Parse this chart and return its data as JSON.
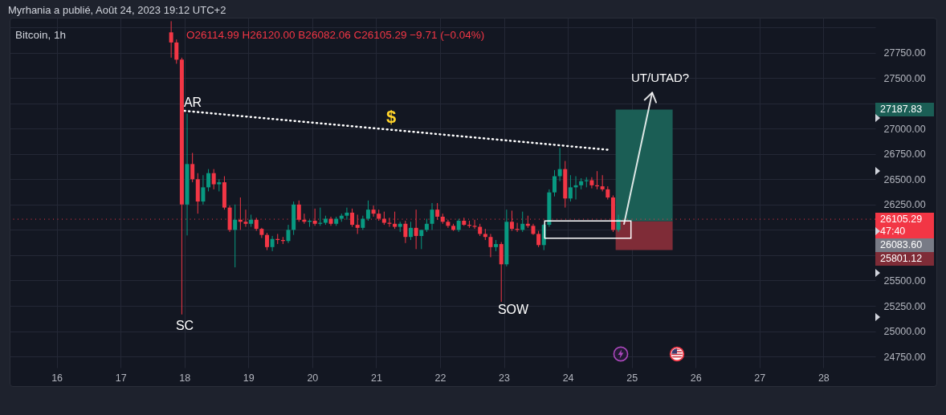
{
  "chart_data": {
    "type": "candlestick",
    "title": "Bitcoin, 1h",
    "x": [
      "2023-08-17T19:00",
      "2023-08-17T21:00",
      "2023-08-17T23:00",
      "2023-08-18T01:00",
      "2023-08-18T03:00",
      "2023-08-18T05:00",
      "2023-08-18T07:00",
      "2023-08-18T09:00",
      "2023-08-18T11:00",
      "2023-08-18T13:00",
      "2023-08-18T15:00",
      "2023-08-18T17:00",
      "2023-08-18T19:00",
      "2023-08-18T21:00",
      "2023-08-18T23:00",
      "2023-08-19T01:00",
      "2023-08-19T03:00",
      "2023-08-19T05:00",
      "2023-08-19T07:00",
      "2023-08-19T09:00",
      "2023-08-19T11:00",
      "2023-08-19T13:00",
      "2023-08-19T15:00",
      "2023-08-19T17:00",
      "2023-08-19T19:00",
      "2023-08-19T21:00",
      "2023-08-19T23:00",
      "2023-08-20T01:00",
      "2023-08-20T03:00",
      "2023-08-20T05:00",
      "2023-08-20T07:00",
      "2023-08-20T09:00",
      "2023-08-20T11:00",
      "2023-08-20T13:00",
      "2023-08-20T15:00",
      "2023-08-20T17:00",
      "2023-08-20T19:00",
      "2023-08-20T21:00",
      "2023-08-20T23:00",
      "2023-08-21T01:00",
      "2023-08-21T03:00",
      "2023-08-21T05:00",
      "2023-08-21T07:00",
      "2023-08-21T09:00",
      "2023-08-21T11:00",
      "2023-08-21T13:00",
      "2023-08-21T15:00",
      "2023-08-21T17:00",
      "2023-08-21T19:00",
      "2023-08-21T21:00",
      "2023-08-21T23:00",
      "2023-08-22T01:00",
      "2023-08-22T03:00",
      "2023-08-22T05:00",
      "2023-08-22T07:00",
      "2023-08-22T09:00",
      "2023-08-22T11:00",
      "2023-08-22T13:00",
      "2023-08-22T15:00",
      "2023-08-22T17:00",
      "2023-08-22T19:00",
      "2023-08-22T21:00",
      "2023-08-22T23:00",
      "2023-08-23T01:00",
      "2023-08-23T03:00",
      "2023-08-23T05:00",
      "2023-08-23T07:00",
      "2023-08-23T09:00",
      "2023-08-23T11:00",
      "2023-08-23T13:00",
      "2023-08-23T15:00",
      "2023-08-23T17:00",
      "2023-08-23T19:00",
      "2023-08-23T21:00",
      "2023-08-23T23:00",
      "2023-08-24T01:00",
      "2023-08-24T03:00",
      "2023-08-24T05:00",
      "2023-08-24T07:00",
      "2023-08-24T09:00",
      "2023-08-24T11:00",
      "2023-08-24T13:00",
      "2023-08-24T15:00",
      "2023-08-24T17:00",
      "2023-08-24T19:00"
    ],
    "ohlc": [
      [
        27950,
        28060,
        27700,
        27850
      ],
      [
        27850,
        27880,
        27640,
        27680
      ],
      [
        27680,
        27700,
        25165,
        26250
      ],
      [
        26250,
        27148,
        25945,
        26650
      ],
      [
        26650,
        26760,
        26470,
        26500
      ],
      [
        26500,
        26560,
        26160,
        26280
      ],
      [
        26280,
        26540,
        26250,
        26420
      ],
      [
        26420,
        26600,
        26380,
        26560
      ],
      [
        26560,
        26600,
        26400,
        26450
      ],
      [
        26450,
        26500,
        26380,
        26470
      ],
      [
        26470,
        26530,
        26200,
        26220
      ],
      [
        26220,
        26240,
        25980,
        26000
      ],
      [
        26000,
        26250,
        25630,
        26100
      ],
      [
        26100,
        26320,
        26000,
        26080
      ],
      [
        26080,
        26200,
        26030,
        26060
      ],
      [
        26060,
        26150,
        26030,
        26100
      ],
      [
        26100,
        26120,
        25990,
        26010
      ],
      [
        26010,
        26020,
        25920,
        25950
      ],
      [
        25950,
        25970,
        25800,
        25830
      ],
      [
        25830,
        25940,
        25790,
        25910
      ],
      [
        25910,
        25960,
        25860,
        25900
      ],
      [
        25900,
        25930,
        25860,
        25890
      ],
      [
        25890,
        26050,
        25870,
        26000
      ],
      [
        26000,
        26280,
        25950,
        26250
      ],
      [
        26250,
        26290,
        26080,
        26100
      ],
      [
        26100,
        26160,
        26060,
        26080
      ],
      [
        26080,
        26100,
        26030,
        26090
      ],
      [
        26090,
        26210,
        26040,
        26060
      ],
      [
        26060,
        26220,
        26040,
        26070
      ],
      [
        26070,
        26140,
        26050,
        26110
      ],
      [
        26110,
        26130,
        26040,
        26060
      ],
      [
        26060,
        26130,
        26040,
        26110
      ],
      [
        26110,
        26160,
        26080,
        26140
      ],
      [
        26140,
        26220,
        26100,
        26170
      ],
      [
        26170,
        26210,
        26030,
        26050
      ],
      [
        26050,
        26150,
        25960,
        26020
      ],
      [
        26020,
        26140,
        26000,
        26110
      ],
      [
        26110,
        26290,
        26090,
        26200
      ],
      [
        26200,
        26240,
        26130,
        26160
      ],
      [
        26160,
        26200,
        26090,
        26110
      ],
      [
        26110,
        26180,
        26050,
        26070
      ],
      [
        26070,
        26120,
        26030,
        26060
      ],
      [
        26060,
        26180,
        26010,
        26030
      ],
      [
        26030,
        26080,
        25980,
        26060
      ],
      [
        26060,
        26090,
        25870,
        25930
      ],
      [
        25930,
        26080,
        25900,
        26020
      ],
      [
        26020,
        26200,
        25810,
        25940
      ],
      [
        25940,
        26000,
        25810,
        26000
      ],
      [
        26000,
        26110,
        25980,
        26060
      ],
      [
        26060,
        26265,
        26000,
        26200
      ],
      [
        26200,
        26265,
        26100,
        26130
      ],
      [
        26130,
        26160,
        26060,
        26080
      ],
      [
        26080,
        26100,
        26020,
        26040
      ],
      [
        26040,
        26060,
        25990,
        26000
      ],
      [
        26000,
        26110,
        25980,
        26090
      ],
      [
        26090,
        26120,
        26040,
        26050
      ],
      [
        26050,
        26090,
        26020,
        26040
      ],
      [
        26040,
        26100,
        26010,
        26030
      ],
      [
        26030,
        26060,
        25940,
        25960
      ],
      [
        25960,
        26010,
        25900,
        25930
      ],
      [
        25930,
        25960,
        25730,
        25830
      ],
      [
        25830,
        25900,
        25790,
        25860
      ],
      [
        25860,
        25880,
        25290,
        25660
      ],
      [
        25660,
        26200,
        25640,
        26080
      ],
      [
        26080,
        26190,
        25990,
        26010
      ],
      [
        26010,
        26070,
        25980,
        26000
      ],
      [
        26000,
        26180,
        25980,
        26060
      ],
      [
        26060,
        26140,
        26020,
        26040
      ],
      [
        26040,
        26060,
        25950,
        25960
      ],
      [
        25960,
        25990,
        25830,
        25850
      ],
      [
        25850,
        26060,
        25800,
        26050
      ],
      [
        26050,
        26400,
        26030,
        26370
      ],
      [
        26370,
        26590,
        26330,
        26530
      ],
      [
        26530,
        26810,
        26480,
        26600
      ],
      [
        26600,
        26680,
        26220,
        26310
      ],
      [
        26310,
        26540,
        26280,
        26420
      ],
      [
        26420,
        26530,
        26300,
        26440
      ],
      [
        26440,
        26510,
        26400,
        26480
      ],
      [
        26480,
        26520,
        26420,
        26490
      ],
      [
        26490,
        26520,
        26410,
        26440
      ],
      [
        26440,
        26580,
        26400,
        26430
      ],
      [
        26430,
        26540,
        26380,
        26400
      ],
      [
        26400,
        26430,
        26300,
        26320
      ],
      [
        26320,
        26340,
        25980,
        26000
      ],
      [
        26000,
        26150,
        25980,
        26105.29
      ]
    ],
    "xlim": [
      "2023-08-15T07:50",
      "2023-08-28T18:00"
    ],
    "ylim": [
      24640,
      28095
    ],
    "xticks": [
      {
        "value": "2023-08-16",
        "label": "16"
      },
      {
        "value": "2023-08-17",
        "label": "17"
      },
      {
        "value": "2023-08-18",
        "label": "18"
      },
      {
        "value": "2023-08-19",
        "label": "19"
      },
      {
        "value": "2023-08-20",
        "label": "20"
      },
      {
        "value": "2023-08-21",
        "label": "21"
      },
      {
        "value": "2023-08-22",
        "label": "22"
      },
      {
        "value": "2023-08-23",
        "label": "23"
      },
      {
        "value": "2023-08-24",
        "label": "24"
      },
      {
        "value": "2023-08-25",
        "label": "25"
      },
      {
        "value": "2023-08-26",
        "label": "26"
      },
      {
        "value": "2023-08-27",
        "label": "27"
      },
      {
        "value": "2023-08-28",
        "label": "28"
      }
    ],
    "yticks": [
      {
        "value": 24750,
        "label": "24750.00"
      },
      {
        "value": 25000,
        "label": "25000.00"
      },
      {
        "value": 25250,
        "label": "25250.00"
      },
      {
        "value": 25500,
        "label": "25500.00"
      },
      {
        "value": 25750,
        "label": null
      },
      {
        "value": 26000,
        "label": null
      },
      {
        "value": 26250,
        "label": "26250.00"
      },
      {
        "value": 26500,
        "label": "26500.00"
      },
      {
        "value": 26750,
        "label": "26750.00"
      },
      {
        "value": 27000,
        "label": "27000.00"
      },
      {
        "value": 27250,
        "label": null
      },
      {
        "value": 27500,
        "label": "27500.00"
      },
      {
        "value": 27750,
        "label": "27750.00"
      },
      {
        "value": 28000,
        "label": null
      }
    ],
    "grid": true,
    "ref_lines": [
      {
        "axis": "y",
        "value": 26105.29,
        "label": "26105.29",
        "color": "#f23645",
        "line_style": "dotted"
      }
    ],
    "series": [
      {
        "type": "bar",
        "x": [
          "2023-08-25T04:40"
        ],
        "base": [
          26083.6
        ],
        "values": [
          1104.23
        ],
        "color": "#1b5e55"
      },
      {
        "type": "bar",
        "x": [
          "2023-08-25T04:40"
        ],
        "base": [
          25801.12
        ],
        "values": [
          282.48
        ],
        "color": "#7f2c37"
      },
      {
        "type": "line",
        "x": [
          "2023-08-18T00:00",
          "2023-08-24T15:30"
        ],
        "values": [
          27175,
          26790
        ],
        "color": "#ffffff",
        "line_style": "dotted"
      }
    ],
    "annotations": [
      "Myrhania a publié, Août 24, 2023 19:12 UTC+2",
      "O26114.99 H26120.00 B26082.06 C26105.29 −9.71 (−0.04%)",
      "47:40",
      "AR",
      "SC",
      "SOW",
      {
        "text": "UT/UTAD?",
        "x": "2023-08-25T04:40",
        "y": 27187.83
      },
      "$",
      "27187.83",
      "26083.60",
      "25801.12"
    ]
  }
}
